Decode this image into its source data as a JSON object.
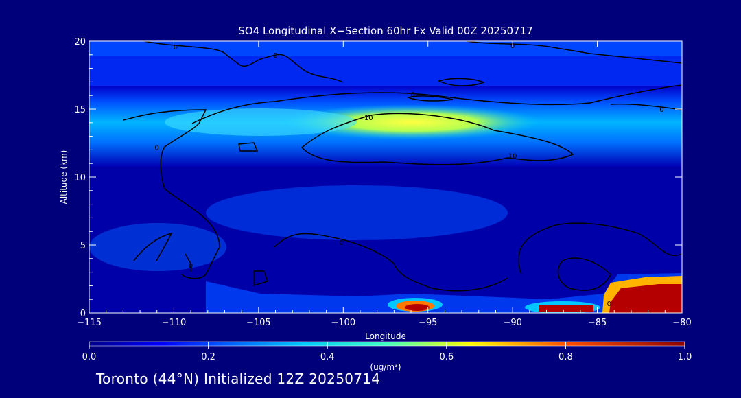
{
  "chart_data": {
    "type": "heatmap",
    "title": "SO4 Longitudinal X−Section 60hr  Fx Valid 00Z 20250717",
    "xlabel": "Longitude",
    "ylabel": "Altitude (km)",
    "xlim": [
      -115,
      -80
    ],
    "ylim": [
      0,
      20
    ],
    "x_ticks": [
      -115,
      -110,
      -105,
      -100,
      -95,
      -90,
      -85,
      -80
    ],
    "x_tick_labels": [
      "−115",
      "−110",
      "−105",
      "−100",
      "−95",
      "−90",
      "−85",
      "−80"
    ],
    "y_ticks": [
      0,
      5,
      10,
      15,
      20
    ],
    "y_tick_labels": [
      "0",
      "5",
      "10",
      "15",
      "20"
    ],
    "colorbar": {
      "label": "(ug/m³)",
      "min": 0.0,
      "max": 1.0,
      "ticks": [
        0.0,
        0.2,
        0.4,
        0.6,
        0.8,
        1.0
      ],
      "tick_labels": [
        "0.0",
        "0.2",
        "0.4",
        "0.6",
        "0.8",
        "1.0"
      ]
    },
    "contour_labels": [
      {
        "text": "0",
        "lon": -109.9,
        "alt": 19.6
      },
      {
        "text": "0",
        "lon": -104.0,
        "alt": 19.0
      },
      {
        "text": "0",
        "lon": -90.0,
        "alt": 19.7
      },
      {
        "text": "0",
        "lon": -95.9,
        "alt": 16.1
      },
      {
        "text": "0",
        "lon": -81.2,
        "alt": 15.0
      },
      {
        "text": "10",
        "lon": -98.5,
        "alt": 14.4
      },
      {
        "text": "10",
        "lon": -90.0,
        "alt": 11.6
      },
      {
        "text": "0",
        "lon": -111.0,
        "alt": 12.2
      },
      {
        "text": "0",
        "lon": -100.1,
        "alt": 5.2
      },
      {
        "text": "0",
        "lon": -109.0,
        "alt": 3.5
      },
      {
        "text": "0",
        "lon": -84.3,
        "alt": 0.7
      }
    ]
  },
  "footer": {
    "location_text": "Toronto (44°N) Initialized 12Z 20250714"
  }
}
